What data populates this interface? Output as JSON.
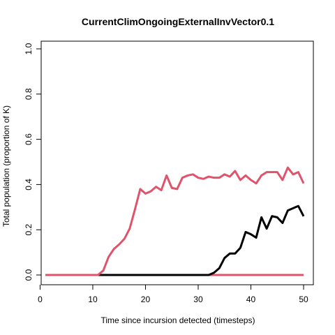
{
  "chart_data": {
    "type": "line",
    "title": "CurrentClimOngoingExternalInvVector0.1",
    "xlabel": "Time since incursion detected (timesteps)",
    "ylabel": "Total population (proportion of K)",
    "xlim": [
      1,
      50
    ],
    "ylim": [
      0,
      1
    ],
    "xticks": [
      "0",
      "10",
      "20",
      "30",
      "40",
      "50"
    ],
    "yticks": [
      "0.0",
      "0.2",
      "0.4",
      "0.6",
      "0.8",
      "1.0"
    ],
    "grid": false,
    "legend": "none",
    "x": [
      1,
      2,
      3,
      4,
      5,
      6,
      7,
      8,
      9,
      10,
      11,
      12,
      13,
      14,
      15,
      16,
      17,
      18,
      19,
      20,
      21,
      22,
      23,
      24,
      25,
      26,
      27,
      28,
      29,
      30,
      31,
      32,
      33,
      34,
      35,
      36,
      37,
      38,
      39,
      40,
      41,
      42,
      43,
      44,
      45,
      46,
      47,
      48,
      49,
      50
    ],
    "series": [
      {
        "color": "#DF536B",
        "values": [
          0,
          0,
          0,
          0,
          0,
          0,
          0,
          0,
          0,
          0,
          0,
          0,
          0,
          0,
          0,
          0,
          0,
          0,
          0,
          0,
          0,
          0,
          0,
          0,
          0,
          0,
          0,
          0,
          0,
          0,
          0,
          0,
          0,
          0,
          0,
          0,
          0,
          0,
          0,
          0,
          0,
          0,
          0,
          0,
          0,
          0,
          0,
          0,
          0,
          0
        ]
      },
      {
        "color": "#000000",
        "values": [
          0,
          0,
          0,
          0,
          0,
          0,
          0,
          0,
          0,
          0,
          0,
          0,
          0,
          0,
          0,
          0,
          0,
          0,
          0,
          0,
          0,
          0,
          0,
          0,
          0,
          0,
          0,
          0,
          0,
          0,
          0,
          0,
          0.01,
          0.03,
          0.075,
          0.095,
          0.095,
          0.12,
          0.19,
          0.18,
          0.165,
          0.255,
          0.205,
          0.26,
          0.255,
          0.23,
          0.285,
          0.295,
          0.305,
          0.26
        ]
      },
      {
        "color": "#DF536B",
        "values": [
          0,
          0,
          0,
          0,
          0,
          0,
          0,
          0,
          0,
          0,
          0,
          0.02,
          0.08,
          0.115,
          0.135,
          0.16,
          0.205,
          0.29,
          0.38,
          0.36,
          0.37,
          0.39,
          0.375,
          0.44,
          0.385,
          0.38,
          0.43,
          0.44,
          0.445,
          0.43,
          0.425,
          0.435,
          0.43,
          0.43,
          0.445,
          0.435,
          0.46,
          0.42,
          0.44,
          0.42,
          0.405,
          0.44,
          0.455,
          0.455,
          0.455,
          0.42,
          0.475,
          0.445,
          0.455,
          0.405
        ]
      }
    ]
  }
}
